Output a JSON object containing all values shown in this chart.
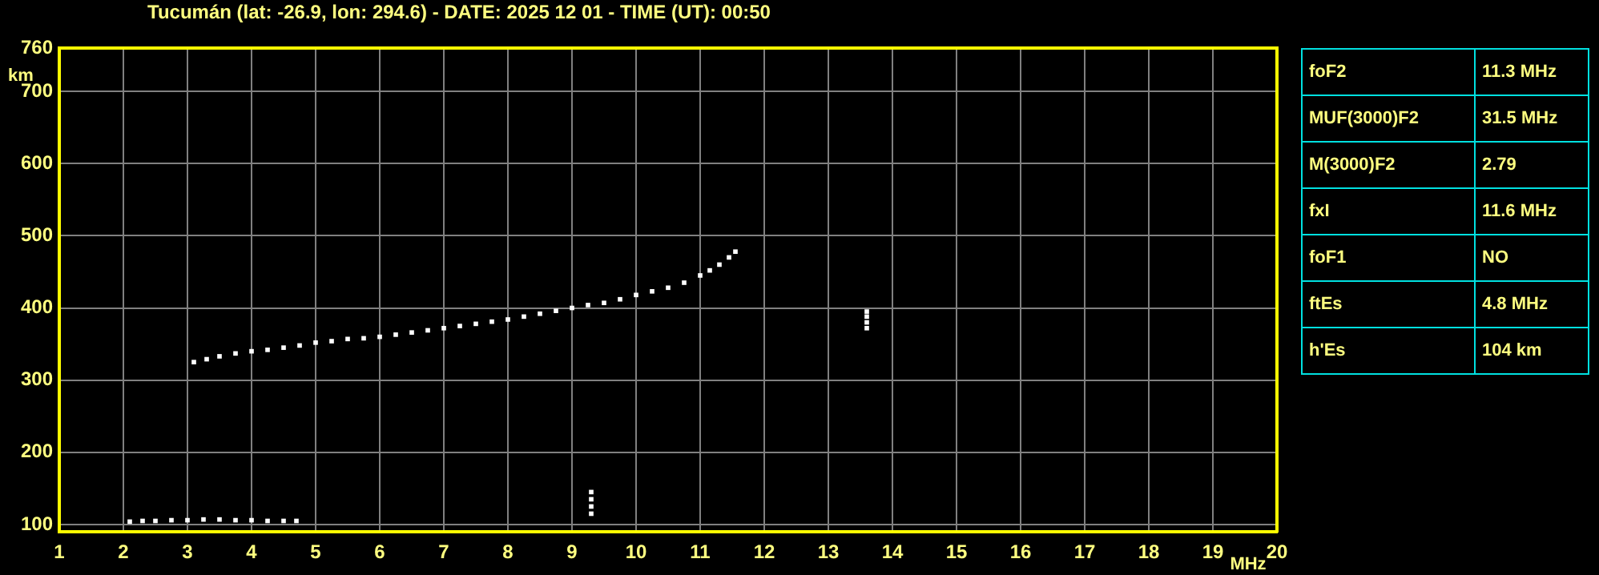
{
  "chart_data": [
    {
      "type": "scatter",
      "title": "Tucumán (lat: -26.9, lon: 294.6) - DATE: 2025 12 01 - TIME (UT): 00:50",
      "xlabel": "MHz",
      "ylabel": "km",
      "x": [
        3.1,
        3.3,
        3.5,
        3.75,
        4.0,
        4.25,
        4.5,
        4.75,
        5.0,
        5.25,
        5.5,
        5.75,
        6.0,
        6.25,
        6.5,
        6.75,
        7.0,
        7.25,
        7.5,
        7.75,
        8.0,
        8.25,
        8.5,
        8.75,
        9.0,
        9.25,
        9.5,
        9.75,
        10.0,
        10.25,
        10.5,
        10.75,
        11.0,
        11.15,
        11.3,
        11.45,
        11.55,
        2.1,
        2.3,
        2.5,
        2.75,
        3.0,
        3.25,
        3.5,
        3.75,
        4.0,
        4.25,
        4.5,
        4.7,
        9.3,
        9.3,
        9.3,
        9.3,
        13.6,
        13.6,
        13.6,
        13.6
      ],
      "values": [
        325,
        329,
        333,
        337,
        340,
        342,
        345,
        348,
        352,
        354,
        357,
        358,
        360,
        363,
        366,
        369,
        372,
        375,
        378,
        381,
        384,
        388,
        392,
        396,
        400,
        404,
        407,
        412,
        418,
        423,
        428,
        435,
        445,
        452,
        460,
        470,
        478,
        104,
        105,
        105,
        106,
        106,
        107,
        107,
        106,
        106,
        105,
        105,
        105,
        115,
        125,
        135,
        145,
        372,
        380,
        388,
        395
      ],
      "color": "#ffffff",
      "marker": "square",
      "xlim": [
        1,
        20
      ],
      "ylim": [
        90,
        760
      ],
      "xticks": [
        1,
        2,
        3,
        4,
        5,
        6,
        7,
        8,
        9,
        10,
        11,
        12,
        13,
        14,
        15,
        16,
        17,
        18,
        19,
        20
      ],
      "yticks": [
        100,
        200,
        300,
        400,
        500,
        600,
        700,
        760
      ],
      "grid": true,
      "legend": false
    },
    {
      "type": "other",
      "annotations": [
        "foF2",
        "11.3 MHz",
        "MUF(3000)F2",
        "31.5 MHz",
        "M(3000)F2",
        "2.79",
        "fxI",
        "11.6 MHz",
        "foF1",
        "NO",
        "ftEs",
        "4.8 MHz",
        "h'Es",
        "104 km"
      ]
    }
  ]
}
